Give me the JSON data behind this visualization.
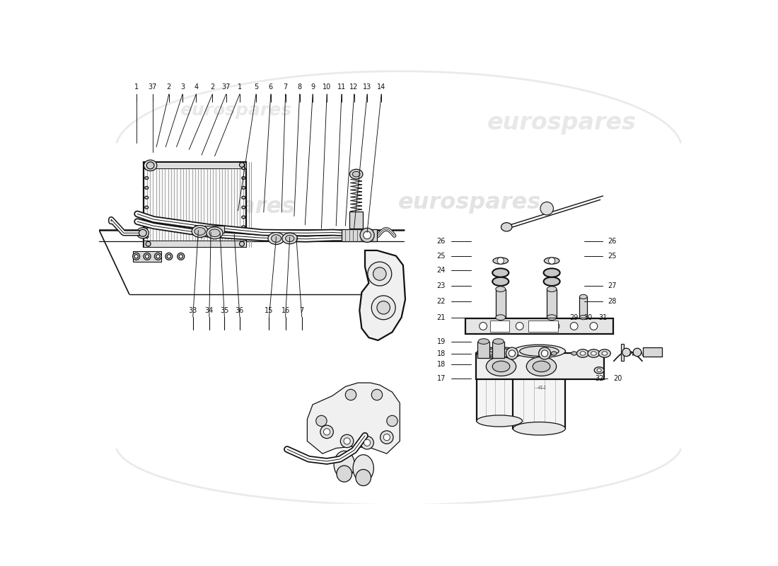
{
  "bg_color": "#ffffff",
  "lc": "#111111",
  "fig_width": 11.0,
  "fig_height": 8.0,
  "dpi": 100,
  "wm_color": "#cccccc",
  "bottom_labels": [
    [
      "1",
      0.68
    ],
    [
      "37",
      0.98
    ],
    [
      "2",
      1.28
    ],
    [
      "3",
      1.53
    ],
    [
      "4",
      1.78
    ],
    [
      "2",
      2.08
    ],
    [
      "37",
      2.33
    ],
    [
      "1",
      2.58
    ],
    [
      "5",
      2.88
    ],
    [
      "6",
      3.15
    ],
    [
      "7",
      3.42
    ],
    [
      "8",
      3.68
    ],
    [
      "9",
      3.92
    ],
    [
      "10",
      4.18
    ],
    [
      "11",
      4.45
    ],
    [
      "12",
      4.68
    ],
    [
      "13",
      4.92
    ],
    [
      "14",
      5.18
    ]
  ],
  "top_labels": [
    [
      "33",
      1.72
    ],
    [
      "34",
      2.02
    ],
    [
      "35",
      2.3
    ],
    [
      "36",
      2.58
    ],
    [
      "15",
      3.12
    ],
    [
      "16",
      3.42
    ],
    [
      "7",
      3.72
    ]
  ],
  "right_left_labels": [
    [
      "17",
      6.28,
      2.3
    ],
    [
      "18",
      6.28,
      2.56
    ],
    [
      "18",
      6.28,
      2.75
    ],
    [
      "19",
      6.28,
      2.98
    ],
    [
      "21",
      6.28,
      3.42
    ],
    [
      "22",
      6.28,
      3.72
    ],
    [
      "23",
      6.28,
      4.0
    ],
    [
      "24",
      6.28,
      4.28
    ],
    [
      "25",
      6.28,
      4.55
    ],
    [
      "26",
      6.28,
      4.82
    ]
  ],
  "right_right_labels": [
    [
      "32",
      9.18,
      2.3
    ],
    [
      "20",
      9.52,
      2.3
    ],
    [
      "29",
      8.72,
      3.42
    ],
    [
      "30",
      8.98,
      3.42
    ],
    [
      "31",
      9.25,
      3.42
    ],
    [
      "28",
      9.42,
      3.72
    ],
    [
      "27",
      9.42,
      4.0
    ],
    [
      "25",
      9.42,
      4.55
    ],
    [
      "26",
      9.42,
      4.82
    ]
  ]
}
